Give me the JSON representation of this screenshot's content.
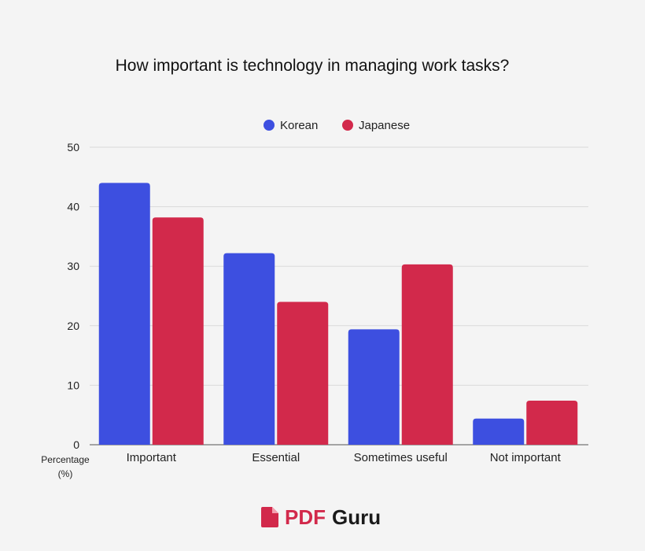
{
  "chart_data": {
    "type": "bar",
    "title": "How important is technology in managing work tasks?",
    "ylabel_line1": "Percentage",
    "ylabel_line2": "(%)",
    "categories": [
      "Important",
      "Essential",
      "Sometimes useful",
      "Not important"
    ],
    "series": [
      {
        "name": "Korean",
        "color": "#3d4fe0",
        "values": [
          44,
          32.2,
          19.4,
          4.4
        ]
      },
      {
        "name": "Japanese",
        "color": "#d2294b",
        "values": [
          38.2,
          24,
          30.3,
          7.4
        ]
      }
    ],
    "ylim": [
      0,
      50
    ],
    "yticks": [
      0,
      10,
      20,
      30,
      40,
      50
    ],
    "grid": true,
    "legend_position": "top-center"
  },
  "brand": {
    "name_part1": "PDF",
    "name_part2": "Guru",
    "accent_color": "#d2294b",
    "icon": "document-icon"
  }
}
